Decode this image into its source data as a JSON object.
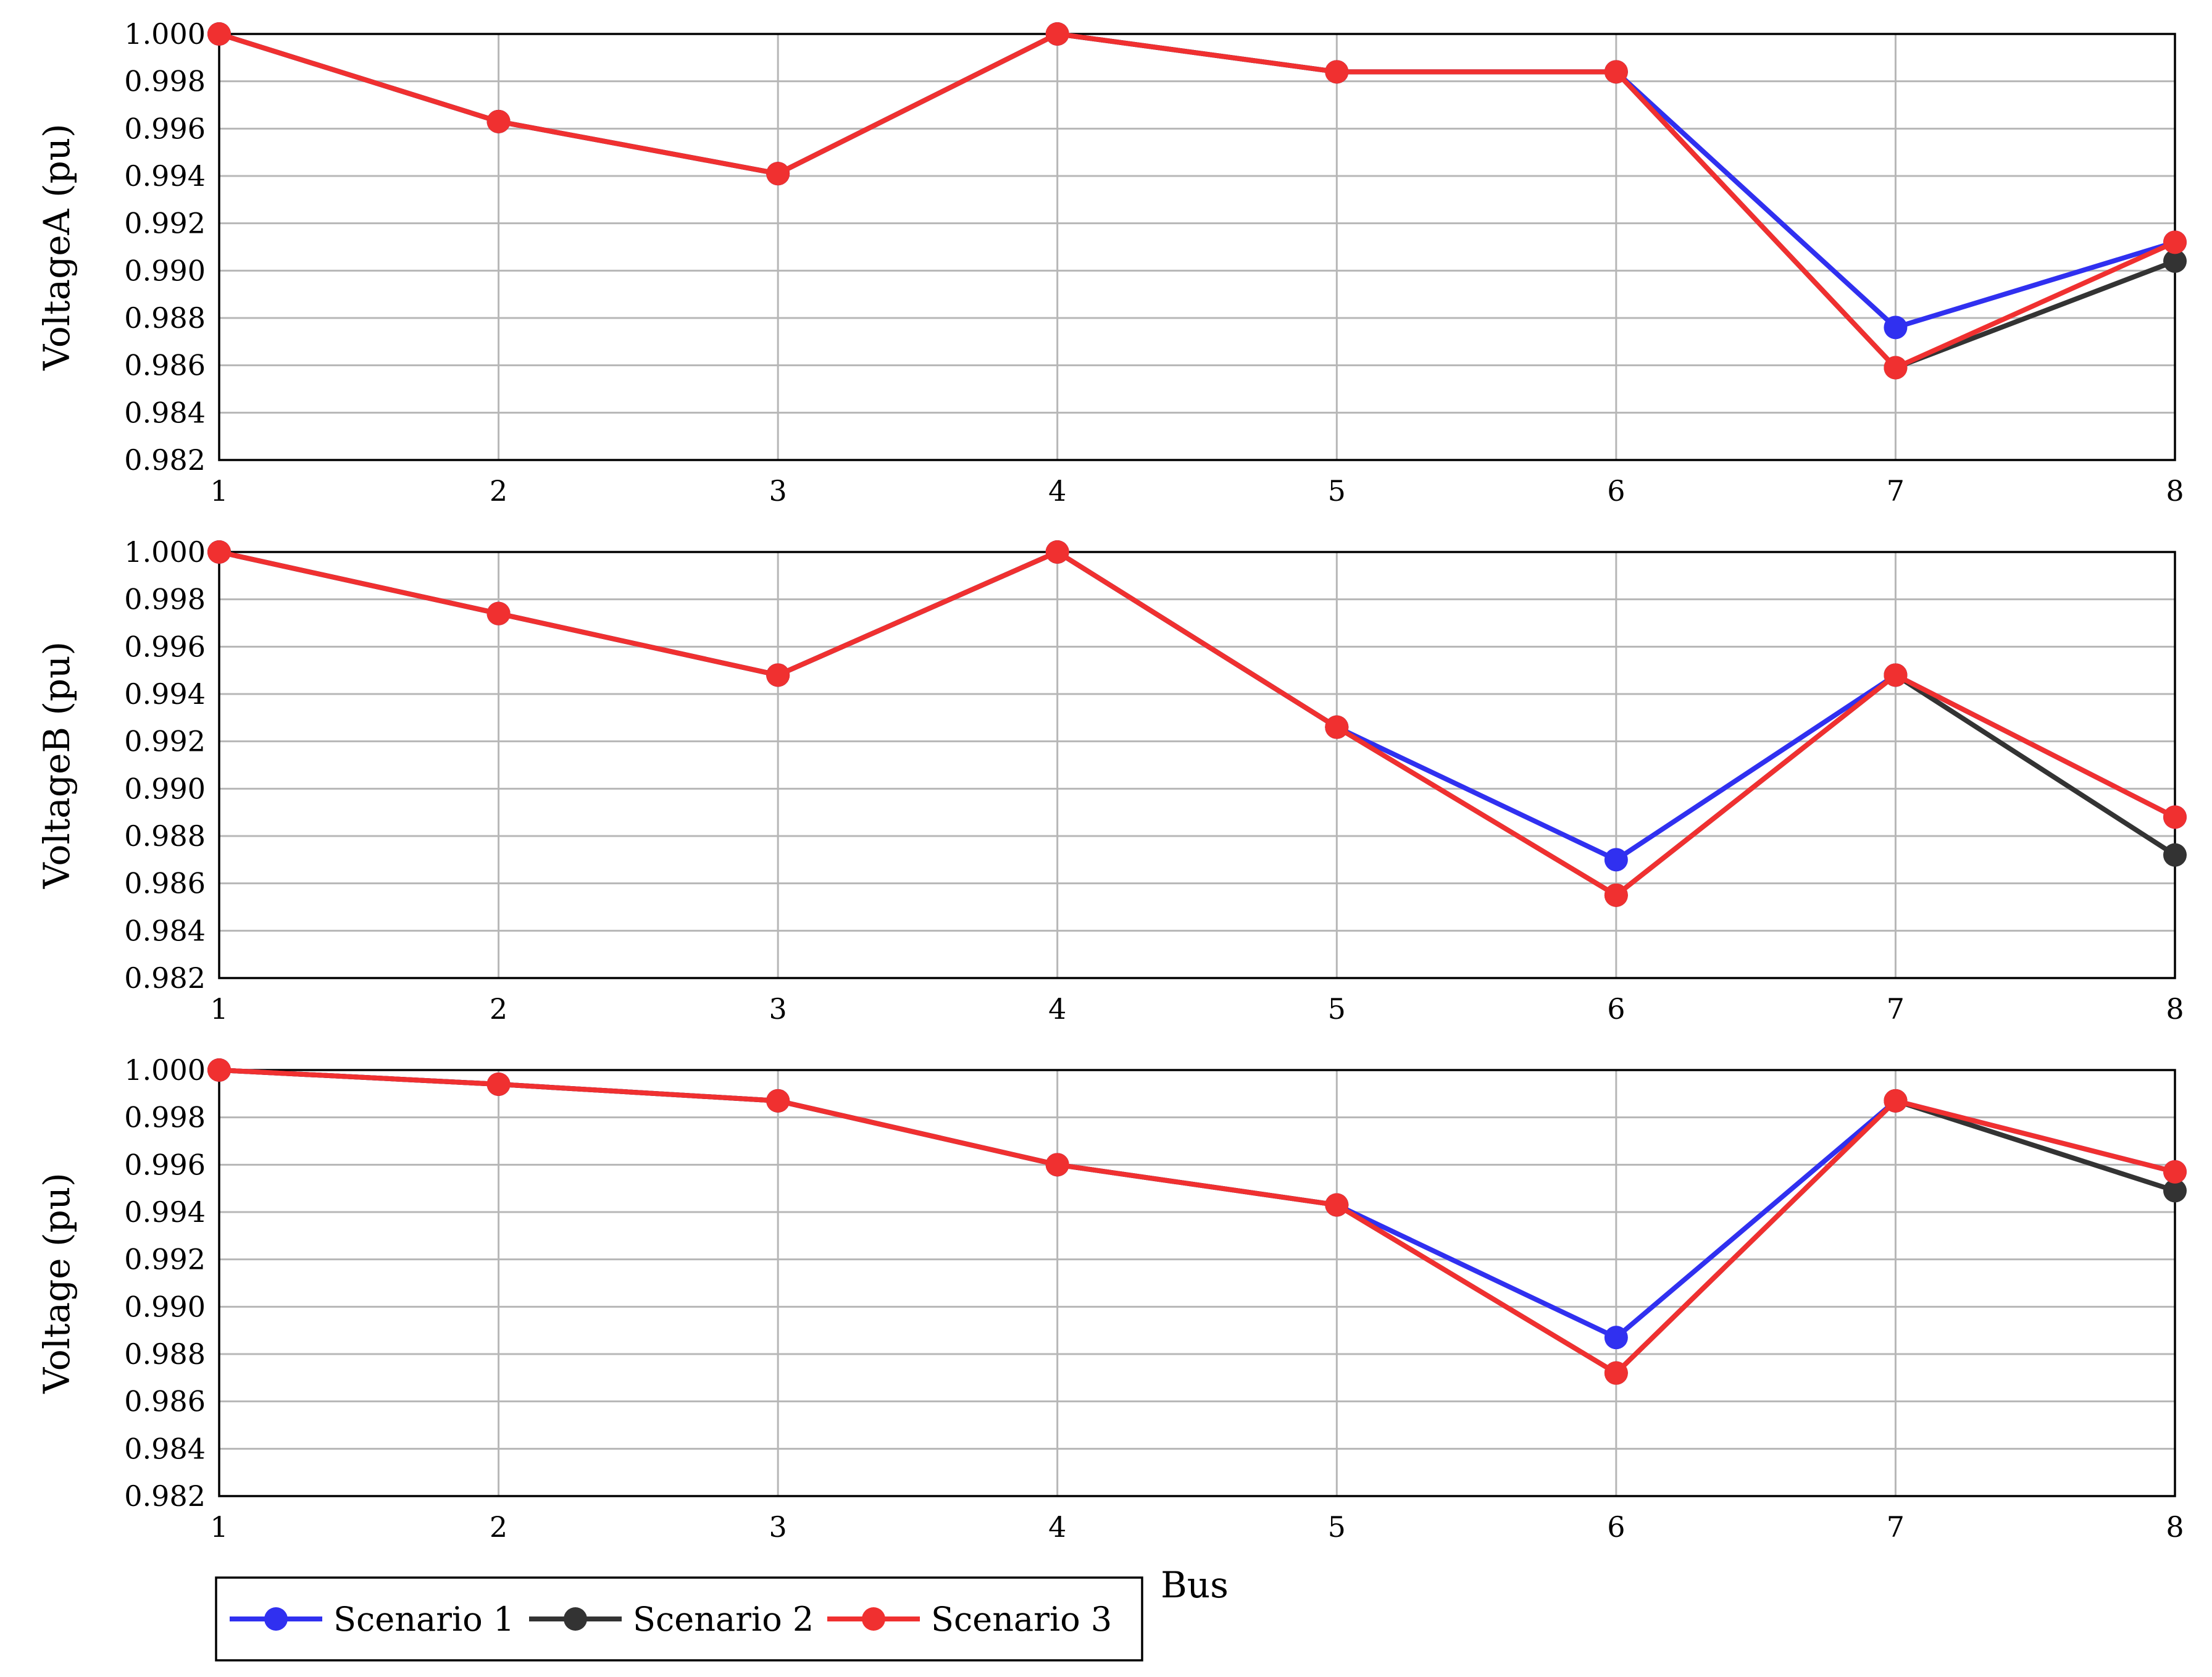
{
  "chart_data": [
    {
      "type": "line",
      "title": "",
      "xlabel": "",
      "ylabel": "VoltageA (pu)",
      "x": [
        1,
        2,
        3,
        4,
        5,
        6,
        7,
        8
      ],
      "xlim": [
        1,
        8
      ],
      "ylim": [
        0.982,
        1.0
      ],
      "yticks": [
        "0.982",
        "0.984",
        "0.986",
        "0.988",
        "0.990",
        "0.992",
        "0.994",
        "0.996",
        "0.998",
        "1.000"
      ],
      "grid": true,
      "series": [
        {
          "name": "Scenario 1",
          "color": "#3030f0",
          "values": [
            1.0,
            0.9963,
            0.9941,
            1.0,
            0.9984,
            0.9984,
            0.9876,
            0.9912
          ]
        },
        {
          "name": "Scenario 2",
          "color": "#333333",
          "values": [
            1.0,
            0.9963,
            0.9941,
            1.0,
            0.9984,
            0.9984,
            0.9859,
            0.9904
          ]
        },
        {
          "name": "Scenario 3",
          "color": "#f03030",
          "values": [
            1.0,
            0.9963,
            0.9941,
            1.0,
            0.9984,
            0.9984,
            0.9859,
            0.9912
          ]
        }
      ]
    },
    {
      "type": "line",
      "title": "",
      "xlabel": "",
      "ylabel": "VoltageB (pu)",
      "x": [
        1,
        2,
        3,
        4,
        5,
        6,
        7,
        8
      ],
      "xlim": [
        1,
        8
      ],
      "ylim": [
        0.982,
        1.0
      ],
      "yticks": [
        "0.982",
        "0.984",
        "0.986",
        "0.988",
        "0.990",
        "0.992",
        "0.994",
        "0.996",
        "0.998",
        "1.000"
      ],
      "grid": true,
      "series": [
        {
          "name": "Scenario 1",
          "color": "#3030f0",
          "values": [
            1.0,
            0.9974,
            0.9948,
            1.0,
            0.9926,
            0.987,
            0.9948,
            0.9888
          ]
        },
        {
          "name": "Scenario 2",
          "color": "#333333",
          "values": [
            1.0,
            0.9974,
            0.9948,
            1.0,
            0.9926,
            0.9855,
            0.9948,
            0.9872
          ]
        },
        {
          "name": "Scenario 3",
          "color": "#f03030",
          "values": [
            1.0,
            0.9974,
            0.9948,
            1.0,
            0.9926,
            0.9855,
            0.9948,
            0.9888
          ]
        }
      ]
    },
    {
      "type": "line",
      "title": "",
      "xlabel": "Bus",
      "ylabel": "Voltage (pu)",
      "x": [
        1,
        2,
        3,
        4,
        5,
        6,
        7,
        8
      ],
      "xlim": [
        1,
        8
      ],
      "ylim": [
        0.982,
        1.0
      ],
      "yticks": [
        "0.982",
        "0.984",
        "0.986",
        "0.988",
        "0.990",
        "0.992",
        "0.994",
        "0.996",
        "0.998",
        "1.000"
      ],
      "grid": true,
      "series": [
        {
          "name": "Scenario 1",
          "color": "#3030f0",
          "values": [
            1.0,
            0.9994,
            0.9987,
            0.996,
            0.9943,
            0.9887,
            0.9987,
            0.9957
          ]
        },
        {
          "name": "Scenario 2",
          "color": "#333333",
          "values": [
            1.0,
            0.9994,
            0.9987,
            0.996,
            0.9943,
            0.9872,
            0.9987,
            0.9949
          ]
        },
        {
          "name": "Scenario 3",
          "color": "#f03030",
          "values": [
            1.0,
            0.9994,
            0.9987,
            0.996,
            0.9943,
            0.9872,
            0.9987,
            0.9957
          ]
        }
      ]
    }
  ],
  "legend": {
    "placement": "bottom-left",
    "items": [
      {
        "label": "Scenario 1",
        "color": "#3030f0"
      },
      {
        "label": "Scenario 2",
        "color": "#333333"
      },
      {
        "label": "Scenario 3",
        "color": "#f03030"
      }
    ]
  }
}
